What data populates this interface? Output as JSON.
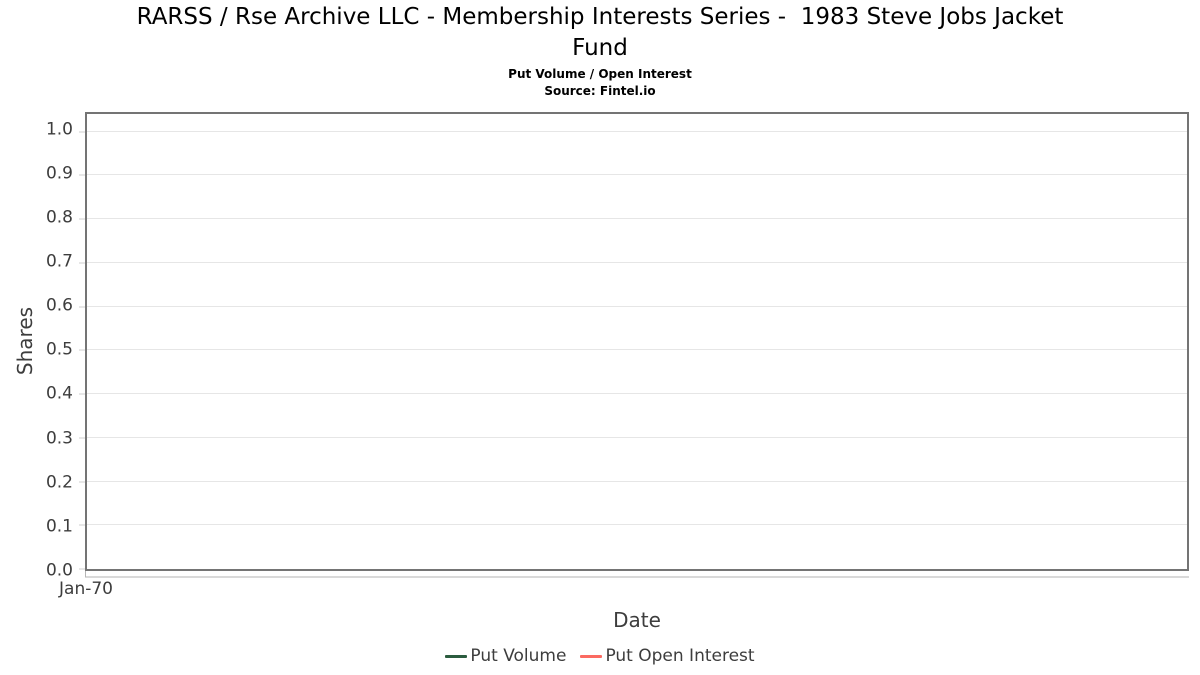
{
  "header": {
    "title": "RARSS / Rse Archive LLC - Membership Interests Series -  1983 Steve Jobs Jacket\nFund",
    "subtitle": "Put Volume / Open Interest",
    "source": "Source: Fintel.io"
  },
  "chart_data": {
    "type": "line",
    "title": "RARSS / Rse Archive LLC - Membership Interests Series -  1983 Steve Jobs Jacket Fund",
    "subtitle": "Put Volume / Open Interest",
    "source_note": "Source: Fintel.io",
    "xlabel": "Date",
    "ylabel": "Shares",
    "x_ticks": [
      "Jan-70"
    ],
    "y_ticks": [
      "0.0",
      "0.1",
      "0.2",
      "0.3",
      "0.4",
      "0.5",
      "0.6",
      "0.7",
      "0.8",
      "0.9",
      "1.0"
    ],
    "ylim": [
      0,
      1.04
    ],
    "grid": "horizontal-only",
    "legend_position": "bottom-center",
    "series": [
      {
        "name": "Put Volume",
        "color": "#2b5c3f",
        "x": [],
        "values": []
      },
      {
        "name": "Put Open Interest",
        "color": "#fb6a61",
        "x": [],
        "values": []
      }
    ]
  },
  "colors": {
    "plot_border": "#747474",
    "gridline": "#e6e6e6",
    "tick_mark": "#cfcfcf",
    "axis_text": "#3d3d3d",
    "title_text": "#000000",
    "background": "#ffffff"
  }
}
